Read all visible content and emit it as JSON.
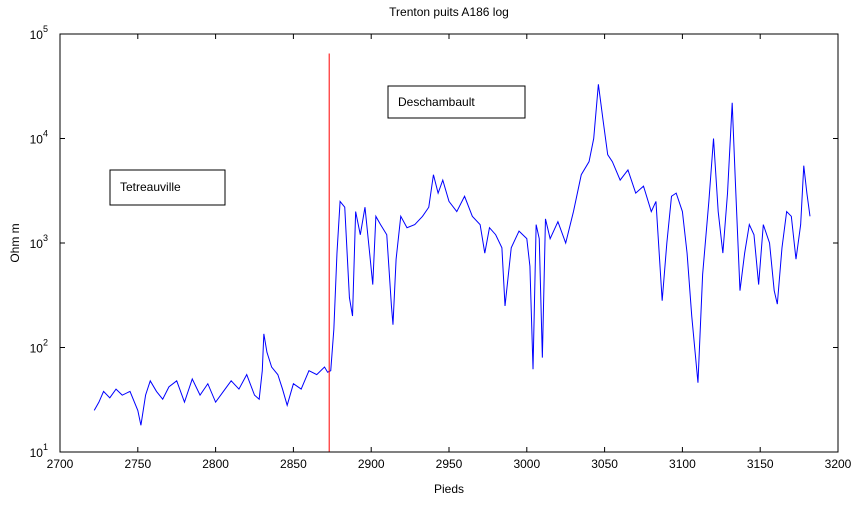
{
  "chart_data": {
    "type": "line",
    "title": "Trenton puits A186 log",
    "x_label": "Pieds",
    "y_label": "Ohm m",
    "xlim": [
      2700,
      3200
    ],
    "xticks": [
      2700,
      2750,
      2800,
      2850,
      2900,
      2950,
      3000,
      3050,
      3100,
      3150,
      3200
    ],
    "ylim": [
      10,
      100000
    ],
    "y_scale": "log",
    "yticks": [
      {
        "value": 10,
        "label": "10^1"
      },
      {
        "value": 100,
        "label": "10^2"
      },
      {
        "value": 1000,
        "label": "10^3"
      },
      {
        "value": 10000,
        "label": "10^4"
      },
      {
        "value": 100000,
        "label": "10^5"
      }
    ],
    "annotations": [
      "Tetreauville",
      "Deschambault"
    ],
    "series": [
      {
        "color": "#0000ff",
        "x": [
          2722,
          2725,
          2728,
          2732,
          2736,
          2740,
          2745,
          2750,
          2752,
          2755,
          2758,
          2762,
          2766,
          2770,
          2775,
          2780,
          2785,
          2790,
          2795,
          2800,
          2805,
          2810,
          2815,
          2820,
          2825,
          2828,
          2830,
          2831,
          2833,
          2836,
          2840,
          2843,
          2846,
          2850,
          2855,
          2860,
          2865,
          2870,
          2872,
          2874,
          2876,
          2878,
          2880,
          2883,
          2886,
          2888,
          2890,
          2893,
          2896,
          2899,
          2901,
          2903,
          2906,
          2910,
          2913,
          2914,
          2916,
          2919,
          2923,
          2928,
          2933,
          2937,
          2940,
          2943,
          2946,
          2950,
          2955,
          2960,
          2965,
          2970,
          2973,
          2976,
          2980,
          2984,
          2986,
          2990,
          2995,
          3000,
          3002,
          3004,
          3006,
          3008,
          3010,
          3012,
          3015,
          3020,
          3025,
          3030,
          3035,
          3040,
          3043,
          3046,
          3049,
          3052,
          3055,
          3060,
          3065,
          3070,
          3075,
          3080,
          3083,
          3087,
          3090,
          3093,
          3096,
          3100,
          3103,
          3106,
          3110,
          3113,
          3117,
          3120,
          3123,
          3126,
          3129,
          3132,
          3134,
          3137,
          3140,
          3143,
          3146,
          3149,
          3152,
          3156,
          3159,
          3161,
          3164,
          3167,
          3170,
          3173,
          3176,
          3178,
          3180,
          3182
        ],
        "values": [
          25,
          30,
          38,
          33,
          40,
          35,
          38,
          25,
          18,
          35,
          48,
          38,
          32,
          42,
          48,
          30,
          50,
          35,
          45,
          30,
          38,
          48,
          40,
          55,
          35,
          32,
          60,
          135,
          90,
          65,
          55,
          40,
          28,
          45,
          40,
          60,
          55,
          65,
          58,
          60,
          150,
          800,
          2500,
          2200,
          300,
          200,
          2000,
          1200,
          2200,
          800,
          400,
          1800,
          1500,
          1200,
          250,
          165,
          700,
          1800,
          1400,
          1500,
          1800,
          2200,
          4500,
          3000,
          4000,
          2500,
          2000,
          2800,
          1800,
          1500,
          800,
          1400,
          1200,
          900,
          250,
          900,
          1300,
          1100,
          600,
          62,
          1500,
          1100,
          80,
          1700,
          1100,
          1600,
          1000,
          2000,
          4500,
          6000,
          10000,
          33000,
          15000,
          7000,
          6000,
          4000,
          5000,
          3000,
          3500,
          2000,
          2500,
          280,
          1000,
          2800,
          3000,
          2000,
          800,
          200,
          46,
          500,
          2500,
          10000,
          2000,
          800,
          3000,
          22000,
          4000,
          350,
          800,
          1500,
          1200,
          400,
          1500,
          1000,
          350,
          260,
          900,
          2000,
          1800,
          700,
          1500,
          5500,
          3000,
          1800
        ]
      },
      {
        "color": "#ff0000",
        "x": [
          2873,
          2873
        ],
        "values": [
          10,
          65000
        ]
      }
    ]
  }
}
